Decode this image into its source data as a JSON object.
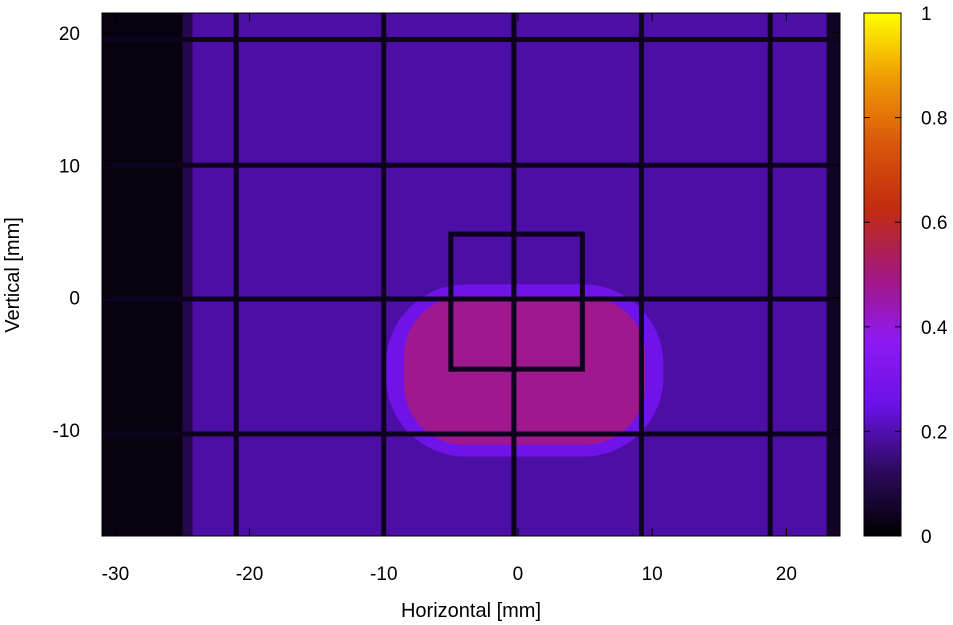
{
  "chart_data": {
    "type": "heatmap",
    "title": "",
    "xlabel": "Horizontal [mm]",
    "ylabel": "Vertical [mm]",
    "xlim": [
      -31,
      24
    ],
    "ylim": [
      -18,
      21.5
    ],
    "x_ticks": [
      -30,
      -20,
      -10,
      0,
      10,
      20
    ],
    "y_ticks": [
      -10,
      0,
      10,
      20
    ],
    "colorbar": {
      "min": 0,
      "max": 1,
      "ticks": [
        0,
        0.2,
        0.4,
        0.6,
        0.8,
        1
      ],
      "tick_labels": [
        "0",
        "0.2",
        "0.4",
        "0.6",
        "0.8",
        "1"
      ],
      "palette": [
        "#000000",
        "#2d0a5e",
        "#6a12e6",
        "#8f19f2",
        "#a3187a",
        "#c22c10",
        "#d9570a",
        "#f09a05",
        "#ffff00"
      ]
    },
    "field": {
      "background_level": 0.19,
      "dark_left_edge_x": [
        -31,
        -25
      ],
      "dark_right_edge_x": [
        23,
        24
      ],
      "bright_region": {
        "center": [
          0.5,
          -5.5
        ],
        "half_width": [
          9,
          5.6
        ],
        "level": 0.48
      },
      "grid_lines": {
        "vertical_x": [
          -21,
          -10,
          -0.3,
          9.2,
          18.8
        ],
        "horizontal_y": [
          19.5,
          10,
          -0.1,
          -10.3
        ],
        "level": 0.04
      },
      "inner_frame": {
        "x": [
          -5,
          4.8
        ],
        "y": [
          -5.4,
          4.8
        ],
        "level": 0.04
      }
    }
  }
}
